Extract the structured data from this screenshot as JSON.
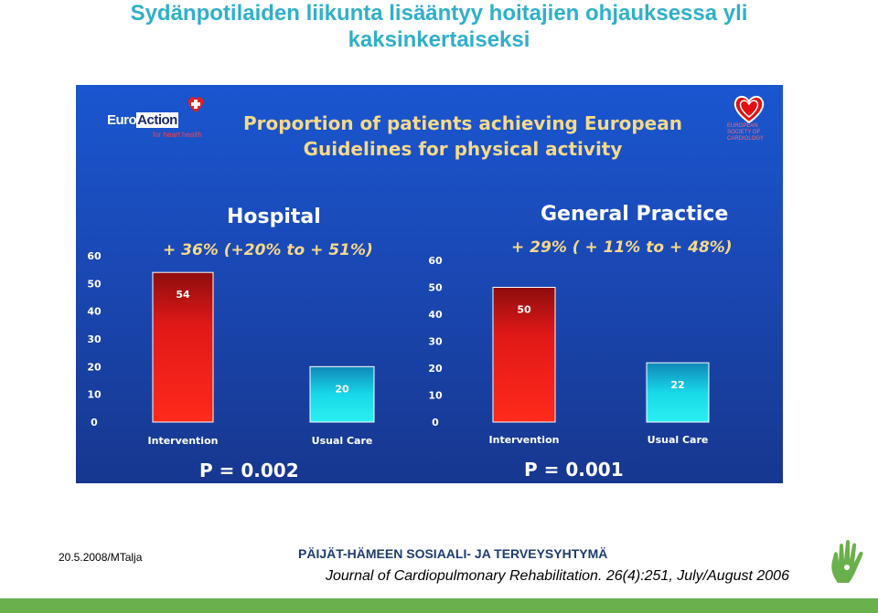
{
  "slide": {
    "title_line1": "Sydänpotilaiden liikunta lisääntyy hoitajien ohjauksessa yli",
    "title_line2": "kaksinkertaiseksi"
  },
  "logos": {
    "euroaction_part1": "Euro",
    "euroaction_part2": "Action",
    "euroaction_tagline": "for heart health",
    "euroaction_icon": "heart-plus-icon",
    "esc_text": "EUROPEAN SOCIETY OF CARDIOLOGY",
    "esc_icon": "heart-outline-icon"
  },
  "footer": {
    "date": "20.5.2008/MTalja",
    "organization": "PÄIJÄT-HÄMEEN SOSIAALI- JA TERVEYSYHTYMÄ",
    "journal": "Journal of Cardiopulmonary Rehabilitation. 26(4):251, July/August 2006",
    "bar_color": "#6ab04c",
    "logo_icon": "green-hand-icon"
  },
  "colors": {
    "title": "#2fb0c8",
    "panel_blue": "#1a4ab8",
    "intervention_bar": "#e01818",
    "usual_care_bar": "#18d8e8",
    "headline_yellow": "#f6d98a"
  },
  "chart_data": {
    "title_line1": "Proportion of patients achieving European",
    "title_line2": "Guidelines for physical activity",
    "charts": [
      {
        "type": "bar",
        "title": "Hospital",
        "subtitle": "+ 36% (+20% to + 51%)",
        "categories": [
          "Intervention",
          "Usual Care"
        ],
        "values": [
          54,
          20
        ],
        "data_labels": [
          "54",
          "20"
        ],
        "ylim": [
          0,
          60
        ],
        "yticks": [
          0,
          10,
          20,
          30,
          40,
          50,
          60
        ],
        "p_value": "P = 0.002",
        "grid": false
      },
      {
        "type": "bar",
        "title": "General Practice",
        "subtitle": "+ 29% ( + 11% to + 48%)",
        "categories": [
          "Intervention",
          "Usual Care"
        ],
        "values": [
          50,
          22
        ],
        "data_labels": [
          "50",
          "22"
        ],
        "ylim": [
          0,
          60
        ],
        "yticks": [
          0,
          10,
          20,
          30,
          40,
          50,
          60
        ],
        "p_value": "P = 0.001",
        "grid": false
      }
    ]
  }
}
